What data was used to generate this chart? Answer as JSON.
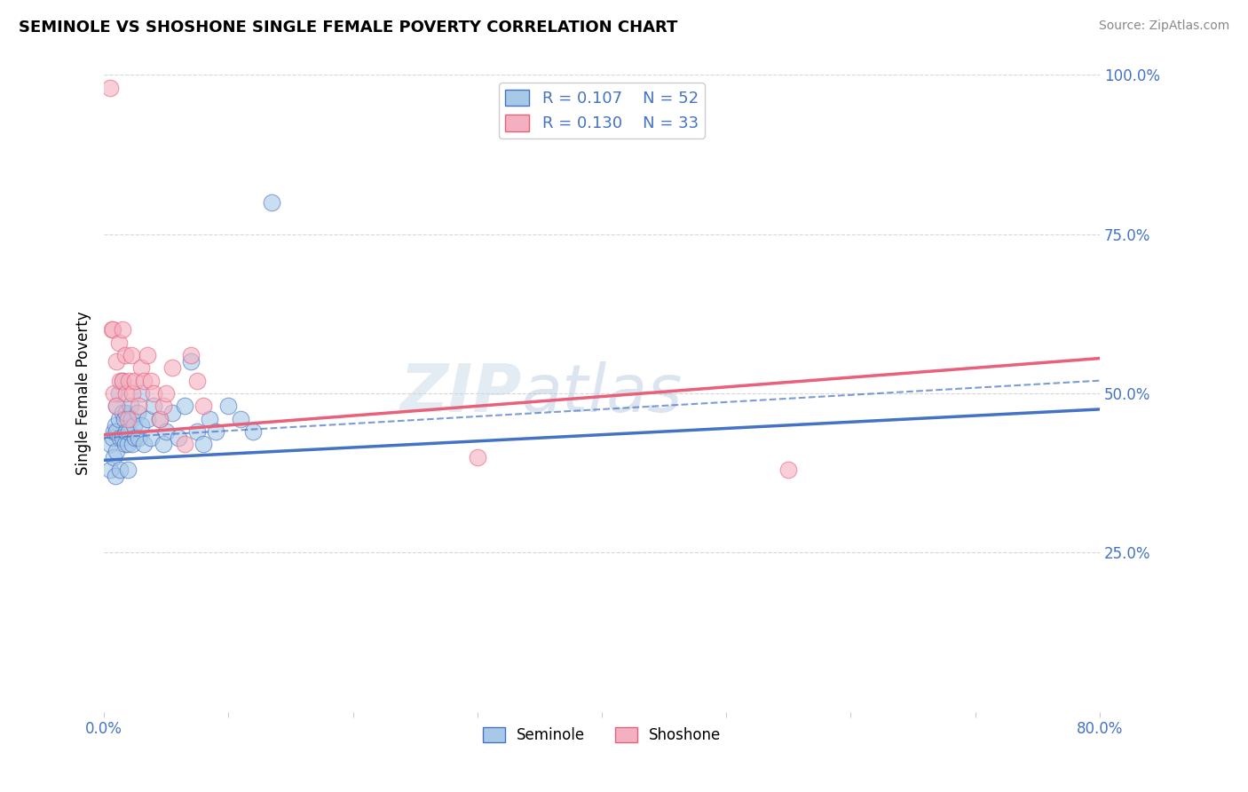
{
  "title": "SEMINOLE VS SHOSHONE SINGLE FEMALE POVERTY CORRELATION CHART",
  "source_text": "Source: ZipAtlas.com",
  "ylabel": "Single Female Poverty",
  "xlim": [
    0.0,
    0.8
  ],
  "ylim": [
    0.0,
    1.0
  ],
  "ytick_vals_right": [
    0.25,
    0.5,
    0.75,
    1.0
  ],
  "ytick_labels_right": [
    "25.0%",
    "50.0%",
    "75.0%",
    "100.0%"
  ],
  "seminole_R": 0.107,
  "seminole_N": 52,
  "shoshone_R": 0.13,
  "shoshone_N": 33,
  "seminole_color": "#a8c8e8",
  "shoshone_color": "#f4b0c0",
  "seminole_line_color": "#4472c4",
  "shoshone_line_color": "#e8607a",
  "background_color": "#ffffff",
  "grid_color": "#cccccc",
  "watermark_text": "ZIPatlas",
  "seminole_line": [
    0.0,
    0.395,
    0.8,
    0.475
  ],
  "shoshone_line": [
    0.0,
    0.435,
    0.8,
    0.555
  ],
  "dashed_line": [
    0.0,
    0.43,
    0.8,
    0.52
  ],
  "seminole_x": [
    0.005,
    0.005,
    0.007,
    0.008,
    0.008,
    0.009,
    0.009,
    0.01,
    0.01,
    0.01,
    0.012,
    0.012,
    0.013,
    0.013,
    0.015,
    0.015,
    0.015,
    0.016,
    0.017,
    0.018,
    0.018,
    0.019,
    0.019,
    0.02,
    0.021,
    0.022,
    0.023,
    0.024,
    0.025,
    0.027,
    0.028,
    0.03,
    0.03,
    0.032,
    0.035,
    0.038,
    0.04,
    0.045,
    0.048,
    0.05,
    0.055,
    0.06,
    0.065,
    0.07,
    0.075,
    0.08,
    0.085,
    0.09,
    0.1,
    0.11,
    0.12,
    0.135
  ],
  "seminole_y": [
    0.42,
    0.38,
    0.43,
    0.44,
    0.4,
    0.45,
    0.37,
    0.48,
    0.44,
    0.41,
    0.5,
    0.46,
    0.43,
    0.38,
    0.52,
    0.47,
    0.43,
    0.46,
    0.42,
    0.47,
    0.44,
    0.42,
    0.38,
    0.44,
    0.48,
    0.46,
    0.42,
    0.45,
    0.43,
    0.47,
    0.43,
    0.5,
    0.45,
    0.42,
    0.46,
    0.43,
    0.48,
    0.46,
    0.42,
    0.44,
    0.47,
    0.43,
    0.48,
    0.55,
    0.44,
    0.42,
    0.46,
    0.44,
    0.48,
    0.46,
    0.44,
    0.8
  ],
  "shoshone_x": [
    0.005,
    0.006,
    0.007,
    0.008,
    0.01,
    0.01,
    0.012,
    0.013,
    0.015,
    0.015,
    0.017,
    0.018,
    0.019,
    0.02,
    0.022,
    0.023,
    0.025,
    0.028,
    0.03,
    0.032,
    0.035,
    0.038,
    0.04,
    0.045,
    0.048,
    0.05,
    0.055,
    0.065,
    0.07,
    0.075,
    0.08,
    0.3,
    0.55
  ],
  "shoshone_y": [
    0.98,
    0.6,
    0.6,
    0.5,
    0.55,
    0.48,
    0.58,
    0.52,
    0.6,
    0.52,
    0.56,
    0.5,
    0.46,
    0.52,
    0.56,
    0.5,
    0.52,
    0.48,
    0.54,
    0.52,
    0.56,
    0.52,
    0.5,
    0.46,
    0.48,
    0.5,
    0.54,
    0.42,
    0.56,
    0.52,
    0.48,
    0.4,
    0.38
  ]
}
